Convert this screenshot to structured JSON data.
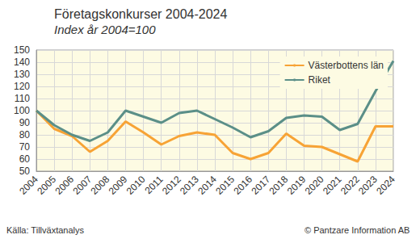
{
  "chart_data": {
    "type": "line",
    "title": "Företagskonkurser 2004-2024",
    "subtitle": "Index år 2004=100",
    "annotations": [
      "Källa: Tillväxtanalys",
      "© Pantzare Information AB"
    ],
    "categories": [
      "2004",
      "2005",
      "2006",
      "2007",
      "2008",
      "2009",
      "2010",
      "2011",
      "2012",
      "2013",
      "2014",
      "2015",
      "2016",
      "2017",
      "2018",
      "2019",
      "2020",
      "2021",
      "2022",
      "2023",
      "2024"
    ],
    "series": [
      {
        "name": "Västerbottens län",
        "color": "#f7a335",
        "values": [
          100,
          85,
          79,
          66,
          75,
          91,
          82,
          72,
          79,
          82,
          80,
          65,
          60,
          65,
          81,
          71,
          70,
          64,
          58,
          87,
          87
        ]
      },
      {
        "name": "Riket",
        "color": "#5b8f88",
        "values": [
          100,
          88,
          80,
          75,
          82,
          100,
          95,
          90,
          98,
          100,
          93,
          86,
          78,
          83,
          94,
          96,
          95,
          84,
          89,
          116,
          141
        ]
      }
    ],
    "ylim": [
      50,
      150
    ],
    "yticks": [
      50,
      60,
      70,
      80,
      90,
      100,
      110,
      120,
      130,
      140,
      150
    ],
    "grid": true,
    "legend": "upper right"
  }
}
